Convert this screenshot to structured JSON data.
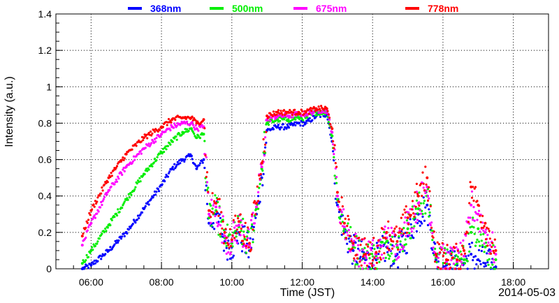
{
  "chart_data": {
    "type": "scatter",
    "title": "",
    "xlabel": "Time (JST)",
    "ylabel": "Intensity (a.u.)",
    "date_label": "2014-05-03",
    "x_unit": "hour of day",
    "xlim": [
      5.0,
      19.0
    ],
    "ylim": [
      0,
      1.4
    ],
    "x_ticks": [
      {
        "value": 6,
        "label": "06:00"
      },
      {
        "value": 8,
        "label": "08:00"
      },
      {
        "value": 10,
        "label": "10:00"
      },
      {
        "value": 12,
        "label": "12:00"
      },
      {
        "value": 14,
        "label": "14:00"
      },
      {
        "value": 16,
        "label": "16:00"
      },
      {
        "value": 18,
        "label": "18:00"
      }
    ],
    "y_ticks": [
      {
        "value": 0,
        "label": "0"
      },
      {
        "value": 0.2,
        "label": "0.2"
      },
      {
        "value": 0.4,
        "label": "0.4"
      },
      {
        "value": 0.6,
        "label": "0.6"
      },
      {
        "value": 0.8,
        "label": "0.8"
      },
      {
        "value": 1.0,
        "label": "1"
      },
      {
        "value": 1.2,
        "label": "1.2"
      },
      {
        "value": 1.4,
        "label": "1.4"
      }
    ],
    "grid": true,
    "legend_position": "top",
    "series": [
      {
        "name": "368nm",
        "color": "#0000ff",
        "x": [
          5.75,
          6.0,
          6.5,
          7.0,
          7.5,
          8.0,
          8.3,
          8.6,
          8.85,
          9.0,
          9.2,
          9.35,
          9.55,
          9.8,
          10.0,
          10.2,
          10.5,
          10.7,
          10.85,
          11.0,
          11.3,
          11.6,
          11.9,
          12.1,
          12.4,
          12.7,
          12.85,
          13.0,
          13.2,
          13.45,
          13.8,
          14.1,
          14.4,
          14.7,
          15.0,
          15.3,
          15.55,
          15.8,
          16.1,
          16.4,
          16.6,
          16.8,
          17.0,
          17.2,
          17.5
        ],
        "y": [
          0.0,
          0.02,
          0.1,
          0.2,
          0.33,
          0.46,
          0.55,
          0.6,
          0.62,
          0.55,
          0.6,
          0.25,
          0.3,
          0.15,
          0.12,
          0.2,
          0.1,
          0.3,
          0.5,
          0.76,
          0.78,
          0.78,
          0.8,
          0.8,
          0.84,
          0.85,
          0.7,
          0.35,
          0.2,
          0.1,
          0.05,
          0.05,
          0.12,
          0.08,
          0.18,
          0.3,
          0.35,
          0.05,
          0.02,
          0.02,
          0.03,
          0.08,
          0.05,
          0.03,
          0.01
        ]
      },
      {
        "name": "500nm",
        "color": "#00ee00",
        "x": [
          5.75,
          6.0,
          6.5,
          7.0,
          7.5,
          8.0,
          8.3,
          8.6,
          8.85,
          9.0,
          9.2,
          9.35,
          9.55,
          9.8,
          10.0,
          10.2,
          10.5,
          10.7,
          10.85,
          11.0,
          11.3,
          11.6,
          11.9,
          12.1,
          12.4,
          12.7,
          12.85,
          13.0,
          13.2,
          13.45,
          13.8,
          14.1,
          14.4,
          14.7,
          15.0,
          15.3,
          15.55,
          15.8,
          16.1,
          16.4,
          16.6,
          16.8,
          17.0,
          17.2,
          17.5
        ],
        "y": [
          0.03,
          0.1,
          0.24,
          0.38,
          0.52,
          0.64,
          0.7,
          0.75,
          0.77,
          0.72,
          0.74,
          0.28,
          0.32,
          0.17,
          0.14,
          0.23,
          0.12,
          0.33,
          0.55,
          0.8,
          0.82,
          0.82,
          0.83,
          0.83,
          0.86,
          0.86,
          0.73,
          0.38,
          0.22,
          0.12,
          0.06,
          0.07,
          0.15,
          0.12,
          0.22,
          0.33,
          0.4,
          0.06,
          0.03,
          0.03,
          0.05,
          0.2,
          0.22,
          0.12,
          0.05
        ]
      },
      {
        "name": "675nm",
        "color": "#ff00ff",
        "x": [
          5.75,
          6.0,
          6.5,
          7.0,
          7.5,
          8.0,
          8.3,
          8.6,
          8.85,
          9.0,
          9.2,
          9.35,
          9.55,
          9.8,
          10.0,
          10.2,
          10.5,
          10.7,
          10.85,
          11.0,
          11.3,
          11.6,
          11.9,
          12.1,
          12.4,
          12.7,
          12.85,
          13.0,
          13.2,
          13.45,
          13.8,
          14.1,
          14.4,
          14.7,
          15.0,
          15.3,
          15.55,
          15.8,
          16.1,
          16.4,
          16.6,
          16.8,
          17.0,
          17.2,
          17.5
        ],
        "y": [
          0.13,
          0.25,
          0.43,
          0.56,
          0.66,
          0.74,
          0.78,
          0.8,
          0.8,
          0.77,
          0.78,
          0.3,
          0.34,
          0.18,
          0.15,
          0.24,
          0.13,
          0.34,
          0.56,
          0.82,
          0.84,
          0.84,
          0.85,
          0.85,
          0.87,
          0.87,
          0.75,
          0.4,
          0.23,
          0.13,
          0.07,
          0.08,
          0.17,
          0.13,
          0.25,
          0.36,
          0.45,
          0.07,
          0.04,
          0.04,
          0.07,
          0.35,
          0.3,
          0.2,
          0.08
        ]
      },
      {
        "name": "778nm",
        "color": "#ff0000",
        "x": [
          5.75,
          6.0,
          6.5,
          7.0,
          7.5,
          8.0,
          8.3,
          8.6,
          8.85,
          9.0,
          9.2,
          9.35,
          9.55,
          9.8,
          10.0,
          10.2,
          10.5,
          10.7,
          10.85,
          11.0,
          11.3,
          11.6,
          11.9,
          12.1,
          12.4,
          12.7,
          12.85,
          13.0,
          13.2,
          13.45,
          13.8,
          14.1,
          14.4,
          14.7,
          15.0,
          15.3,
          15.55,
          15.8,
          16.1,
          16.4,
          16.6,
          16.8,
          17.0,
          17.2,
          17.5
        ],
        "y": [
          0.18,
          0.32,
          0.5,
          0.63,
          0.72,
          0.78,
          0.82,
          0.83,
          0.83,
          0.8,
          0.82,
          0.32,
          0.36,
          0.2,
          0.16,
          0.26,
          0.14,
          0.36,
          0.58,
          0.84,
          0.86,
          0.86,
          0.86,
          0.86,
          0.88,
          0.88,
          0.77,
          0.42,
          0.25,
          0.14,
          0.08,
          0.09,
          0.2,
          0.15,
          0.28,
          0.4,
          0.5,
          0.08,
          0.05,
          0.05,
          0.1,
          0.45,
          0.35,
          0.25,
          0.1
        ]
      }
    ]
  }
}
